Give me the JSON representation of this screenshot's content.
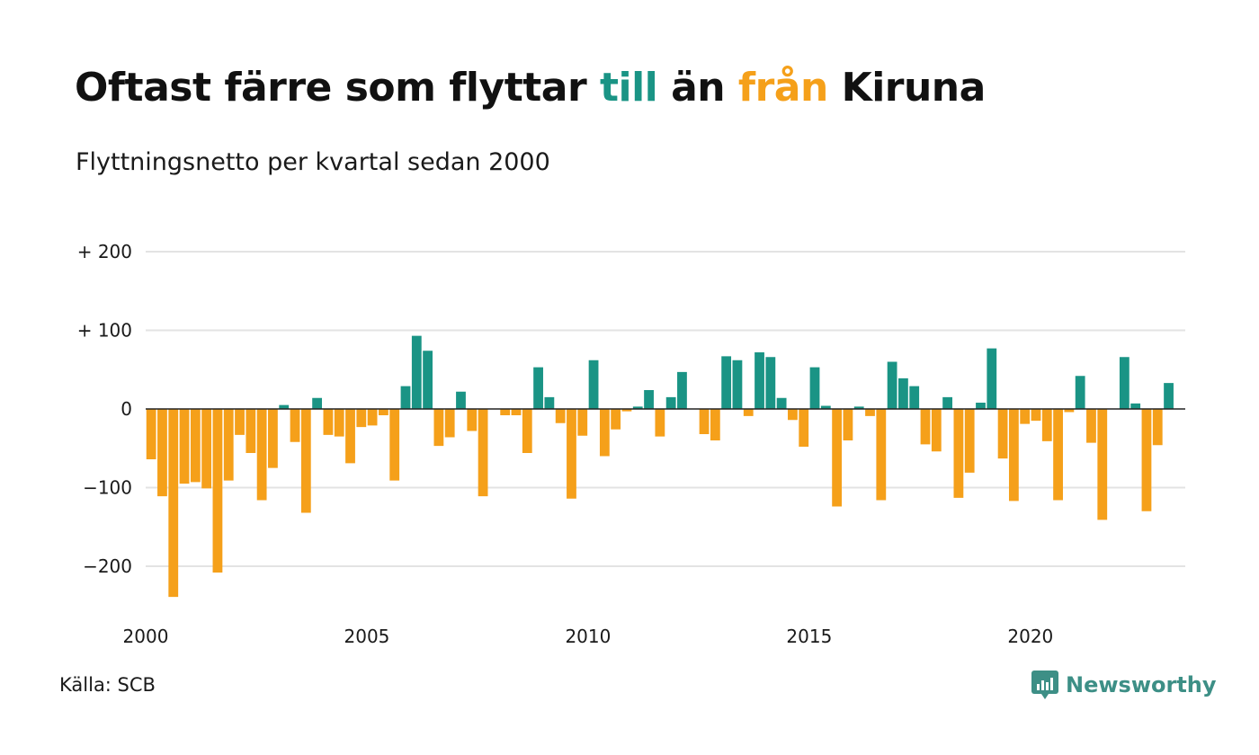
{
  "title": {
    "part1": "Oftast färre som flyttar ",
    "highlight_in": "till",
    "part2": " än ",
    "highlight_out": "från",
    "part3": " Kiruna"
  },
  "subtitle": "Flyttningsnetto per kvartal sedan 2000",
  "source": "Källa: SCB",
  "brand": {
    "name": "Newsworthy",
    "icon": "newsworthy-logo-icon"
  },
  "colors": {
    "positive": "#1a9485",
    "negative": "#f5a01a",
    "brand": "#3d8f86",
    "grid": "#e3e3e3",
    "zero_line": "#222222"
  },
  "chart_data": {
    "type": "bar",
    "title": "Oftast färre som flyttar till än från Kiruna",
    "subtitle": "Flyttningsnetto per kvartal sedan 2000",
    "xlabel": "",
    "ylabel": "",
    "x_start": 2000.0,
    "x_step": 0.25,
    "x_ticks": [
      2000,
      2005,
      2010,
      2015,
      2020
    ],
    "x_tick_labels": [
      "2000",
      "2005",
      "2010",
      "2015",
      "2020"
    ],
    "xlim": [
      2000,
      2023.5
    ],
    "ylim": [
      -260,
      230
    ],
    "y_ticks": [
      200,
      100,
      0,
      -100,
      -200
    ],
    "y_tick_labels": [
      "+ 200",
      "+ 100",
      "0",
      "−100",
      "−200"
    ],
    "grid": true,
    "legend": "none",
    "values": [
      -64,
      -111,
      -239,
      -95,
      -93,
      -101,
      -208,
      -91,
      -33,
      -56,
      -116,
      -75,
      5,
      -42,
      -132,
      14,
      -33,
      -35,
      -69,
      -23,
      -21,
      -8,
      -91,
      29,
      93,
      74,
      -47,
      -36,
      22,
      -28,
      -111,
      0,
      -8,
      -8,
      -56,
      53,
      15,
      -18,
      -114,
      -34,
      62,
      -60,
      -26,
      -3,
      3,
      24,
      -35,
      15,
      47,
      0,
      -32,
      -40,
      67,
      62,
      -9,
      72,
      66,
      14,
      -14,
      -48,
      53,
      4,
      -124,
      -40,
      3,
      -9,
      -116,
      60,
      39,
      29,
      -45,
      -54,
      15,
      -113,
      -81,
      8,
      77,
      -63,
      -117,
      -19,
      -15,
      -41,
      -116,
      -4,
      42,
      -43,
      -141,
      0,
      66,
      7,
      -130,
      -46,
      33
    ]
  }
}
